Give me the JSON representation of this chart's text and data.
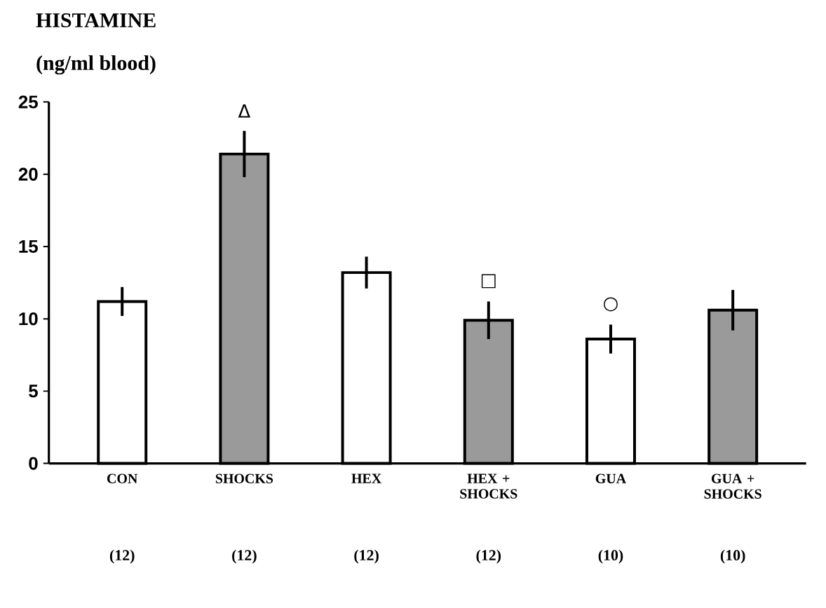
{
  "chart_data": {
    "type": "bar",
    "title": "HISTAMINE",
    "subtitle": "(ng/ml blood)",
    "categories": [
      "CON",
      "SHOCKS",
      "HEX",
      "HEX + SHOCKS",
      "GUA",
      "GUA + SHOCKS"
    ],
    "values": [
      11.2,
      21.4,
      13.2,
      9.9,
      8.6,
      10.6
    ],
    "errors": [
      1.0,
      1.6,
      1.1,
      1.3,
      1.0,
      1.4
    ],
    "value_labels": [
      null,
      "Δ",
      null,
      "□",
      "○",
      null
    ],
    "colors": [
      "#ffffff",
      "#9a9a9a",
      "#ffffff",
      "#9a9a9a",
      "#ffffff",
      "#9a9a9a"
    ],
    "ylim": [
      0,
      25
    ],
    "yticks": [
      0,
      5,
      10,
      15,
      20,
      25
    ],
    "annotations": [
      "(12)",
      "(12)",
      "(12)",
      "(12)",
      "(10)",
      "(10)"
    ]
  }
}
